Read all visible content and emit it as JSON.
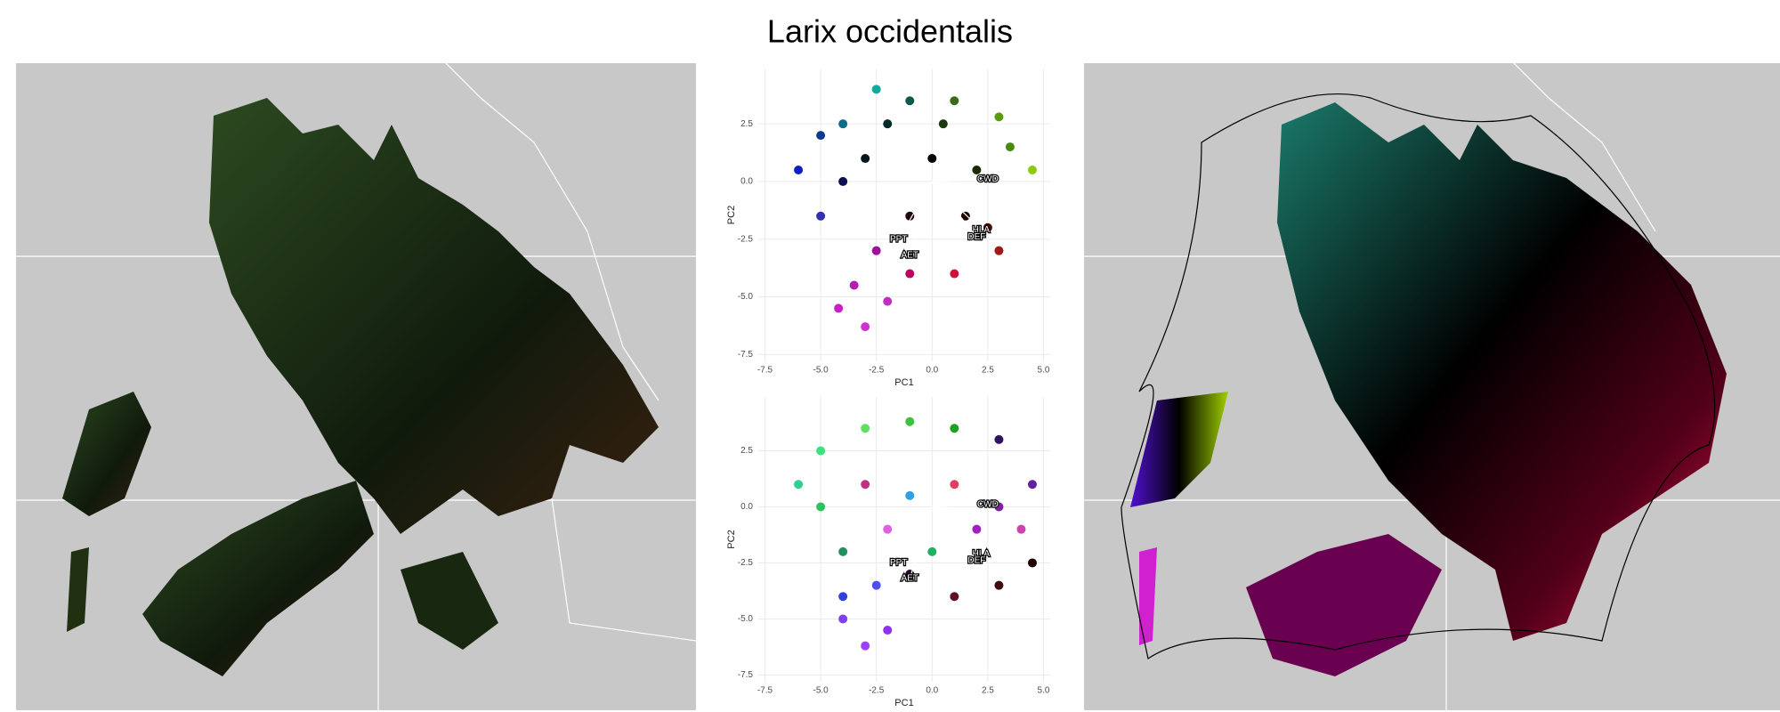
{
  "title": "Larix occidentalis",
  "chart_data": [
    {
      "type": "scatter",
      "xlabel": "PC1",
      "ylabel": "PC2",
      "xlim": [
        -7.8,
        5.3
      ],
      "ylim": [
        -7.8,
        4.9
      ],
      "xticks": [
        -7.5,
        {
          "value": -5.0,
          "label": "-5.0"
        },
        -2.5,
        {
          "value": 0,
          "label": "0.0"
        },
        2.5,
        {
          "value": 5.0,
          "label": "5.0"
        }
      ],
      "yticks": [
        2.5,
        {
          "value": 0,
          "label": "0.0"
        },
        -2.5,
        {
          "value": -5.0,
          "label": "-5.0"
        },
        -7.5
      ],
      "x": [
        -4,
        -2.5,
        -1,
        1,
        3,
        4.5,
        3,
        1,
        -1,
        -2.5,
        -3.5,
        -4.2,
        -3,
        -2,
        -5,
        -6,
        -5,
        -3,
        0,
        2,
        -1,
        1.5,
        3.5,
        -4,
        0.5,
        -2,
        2.5
      ],
      "y": [
        2.5,
        4,
        3.5,
        3.5,
        2.8,
        0.5,
        -3,
        -4,
        -4,
        -3,
        -4.5,
        -5.5,
        -6.3,
        -5.2,
        -1.5,
        0.5,
        2,
        1,
        1,
        0.5,
        -1.5,
        -1.5,
        1.5,
        0,
        2.5,
        2.5,
        -2
      ],
      "colors": [
        "#0a6e8a",
        "#17a89c",
        "#0c5a4a",
        "#3a6a1a",
        "#5a9a10",
        "#8acb10",
        "#a01818",
        "#d0103a",
        "#c00060",
        "#a0109a",
        "#b020b0",
        "#c820c8",
        "#d030d0",
        "#c030c0",
        "#3030b0",
        "#1020c0",
        "#103a90",
        "#051520",
        "#050505",
        "#1a2a05",
        "#200510",
        "#200505",
        "#4a8a10",
        "#0a1050",
        "#1a3a10",
        "#062a2a",
        "#500a0a"
      ],
      "arrows": [
        {
          "label": "CWD",
          "x": 2.5,
          "y": 0.1
        },
        {
          "label": "PPT",
          "x": -1.5,
          "y": -2.5
        },
        {
          "label": "AET",
          "x": -1.0,
          "y": -3.2
        },
        {
          "label": "HLA",
          "x": 2.2,
          "y": -2.1
        },
        {
          "label": "DEF",
          "x": 2.0,
          "y": -2.4
        }
      ]
    },
    {
      "type": "scatter",
      "xlabel": "PC1",
      "ylabel": "PC2",
      "xlim": [
        -7.8,
        5.3
      ],
      "ylim": [
        -7.8,
        4.9
      ],
      "xticks": [
        -7.5,
        {
          "value": -5.0,
          "label": "-5.0"
        },
        -2.5,
        {
          "value": 0,
          "label": "0.0"
        },
        2.5,
        {
          "value": 5.0,
          "label": "5.0"
        }
      ],
      "yticks": [
        2.5,
        {
          "value": 0,
          "label": "0.0"
        },
        -2.5,
        {
          "value": -5.0,
          "label": "-5.0"
        },
        -7.5
      ],
      "x": [
        -6,
        -5,
        -3,
        -1,
        1,
        3,
        4.5,
        4,
        4.5,
        3,
        1,
        -1,
        -2.5,
        -4,
        -4,
        -3,
        -2,
        -5,
        -3,
        -1,
        1,
        2,
        0,
        -2,
        3,
        -4
      ],
      "y": [
        1,
        2.5,
        3.5,
        3.8,
        3.5,
        3,
        1,
        -1,
        -2.5,
        -3.5,
        -4,
        -3,
        -3.5,
        -4,
        -5,
        -6.2,
        -5.5,
        0,
        1,
        0.5,
        1,
        -1,
        -2,
        -1,
        0,
        -2
      ],
      "colors": [
        "#30d090",
        "#40e080",
        "#60e060",
        "#40c040",
        "#20a020",
        "#301060",
        "#6020a0",
        "#d040b0",
        "#200505",
        "#400a0a",
        "#601020",
        "#2a0a2a",
        "#5050f0",
        "#3040e0",
        "#8040f0",
        "#a040ff",
        "#9030f0",
        "#30c060",
        "#c03080",
        "#30a0e0",
        "#e04060",
        "#a020c0",
        "#20b060",
        "#e060e0",
        "#8020a0",
        "#209060"
      ],
      "arrows": [
        {
          "label": "CWD",
          "x": 2.5,
          "y": 0.1
        },
        {
          "label": "PPT",
          "x": -1.5,
          "y": -2.5
        },
        {
          "label": "AET",
          "x": -1.0,
          "y": -3.2
        },
        {
          "label": "HLA",
          "x": 2.2,
          "y": -2.1
        },
        {
          "label": "DEF",
          "x": 2.0,
          "y": -2.4
        }
      ]
    }
  ]
}
